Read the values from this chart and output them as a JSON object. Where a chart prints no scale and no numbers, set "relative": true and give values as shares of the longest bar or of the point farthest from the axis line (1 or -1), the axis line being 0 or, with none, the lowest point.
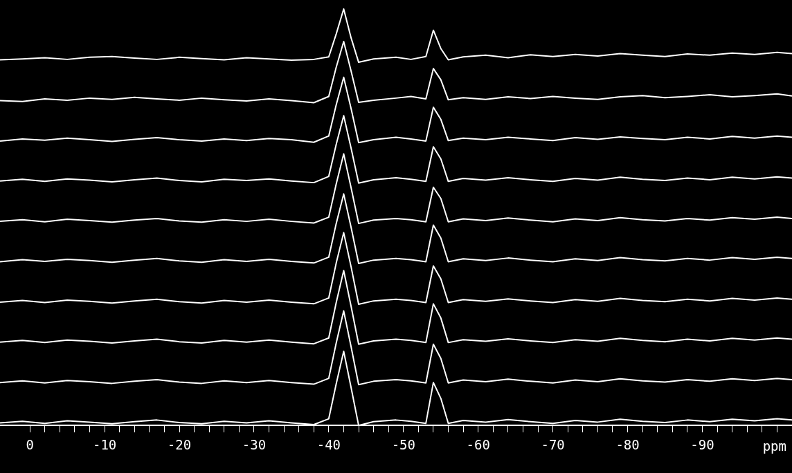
{
  "chart_data": {
    "type": "line",
    "relative": true,
    "xlabel": "ppm",
    "color": "#ffffff",
    "xlim": [
      4,
      -102
    ],
    "xticks": [
      0,
      {
        "value": -2,
        "label": null
      },
      {
        "value": -4,
        "label": null
      },
      {
        "value": -6,
        "label": null
      },
      {
        "value": -8,
        "label": null
      },
      -10,
      {
        "value": -12,
        "label": null
      },
      {
        "value": -14,
        "label": null
      },
      {
        "value": -16,
        "label": null
      },
      {
        "value": -18,
        "label": null
      },
      -20,
      {
        "value": -22,
        "label": null
      },
      {
        "value": -24,
        "label": null
      },
      {
        "value": -26,
        "label": null
      },
      {
        "value": -28,
        "label": null
      },
      -30,
      {
        "value": -32,
        "label": null
      },
      {
        "value": -34,
        "label": null
      },
      {
        "value": -36,
        "label": null
      },
      {
        "value": -38,
        "label": null
      },
      -40,
      {
        "value": -42,
        "label": null
      },
      {
        "value": -44,
        "label": null
      },
      {
        "value": -46,
        "label": null
      },
      {
        "value": -48,
        "label": null
      },
      -50,
      {
        "value": -52,
        "label": null
      },
      {
        "value": -54,
        "label": null
      },
      {
        "value": -56,
        "label": null
      },
      {
        "value": -58,
        "label": null
      },
      -60,
      {
        "value": -62,
        "label": null
      },
      {
        "value": -64,
        "label": null
      },
      {
        "value": -66,
        "label": null
      },
      {
        "value": -68,
        "label": null
      },
      -70,
      {
        "value": -72,
        "label": null
      },
      {
        "value": -74,
        "label": null
      },
      {
        "value": -76,
        "label": null
      },
      {
        "value": -78,
        "label": null
      },
      -80,
      {
        "value": -82,
        "label": null
      },
      {
        "value": -84,
        "label": null
      },
      {
        "value": -86,
        "label": null
      },
      {
        "value": -88,
        "label": null
      },
      -90,
      {
        "value": -92,
        "label": null
      },
      {
        "value": -94,
        "label": null
      },
      {
        "value": -96,
        "label": null
      },
      {
        "value": -98,
        "label": null
      },
      {
        "value": -100,
        "label": null
      }
    ],
    "x": [
      4,
      1,
      -2,
      -5,
      -8,
      -11,
      -14,
      -17,
      -20,
      -23,
      -26,
      -29,
      -32,
      -35,
      -38,
      -40,
      -41,
      -42,
      -43,
      -44,
      -46,
      -49,
      -51,
      -53,
      -54,
      -55,
      -56,
      -58,
      -61,
      -64,
      -67,
      -70,
      -73,
      -76,
      -79,
      -82,
      -85,
      -88,
      -91,
      -94,
      -97,
      -100,
      -102
    ],
    "series": [
      {
        "color": "#ffffff",
        "values": [
          0.878,
          0.88,
          0.883,
          0.879,
          0.884,
          0.886,
          0.882,
          0.879,
          0.884,
          0.881,
          0.878,
          0.883,
          0.88,
          0.877,
          0.879,
          0.885,
          0.94,
          1.0,
          0.93,
          0.872,
          0.88,
          0.884,
          0.879,
          0.886,
          0.949,
          0.905,
          0.878,
          0.885,
          0.889,
          0.883,
          0.89,
          0.886,
          0.891,
          0.887,
          0.893,
          0.889,
          0.886,
          0.892,
          0.889,
          0.894,
          0.891,
          0.896,
          0.893
        ]
      },
      {
        "color": "#ffffff",
        "values": [
          0.78,
          0.778,
          0.784,
          0.781,
          0.786,
          0.783,
          0.788,
          0.784,
          0.781,
          0.786,
          0.782,
          0.779,
          0.784,
          0.78,
          0.775,
          0.79,
          0.86,
          0.922,
          0.85,
          0.776,
          0.781,
          0.786,
          0.79,
          0.784,
          0.857,
          0.83,
          0.782,
          0.787,
          0.783,
          0.789,
          0.785,
          0.79,
          0.786,
          0.783,
          0.789,
          0.792,
          0.787,
          0.79,
          0.794,
          0.789,
          0.792,
          0.796,
          0.791
        ]
      },
      {
        "color": "#ffffff",
        "values": [
          0.683,
          0.688,
          0.685,
          0.69,
          0.686,
          0.682,
          0.687,
          0.691,
          0.686,
          0.683,
          0.688,
          0.684,
          0.689,
          0.686,
          0.68,
          0.695,
          0.77,
          0.836,
          0.76,
          0.679,
          0.686,
          0.692,
          0.688,
          0.683,
          0.764,
          0.735,
          0.684,
          0.69,
          0.686,
          0.692,
          0.688,
          0.684,
          0.691,
          0.687,
          0.693,
          0.689,
          0.686,
          0.692,
          0.688,
          0.694,
          0.69,
          0.695,
          0.692
        ]
      },
      {
        "color": "#ffffff",
        "values": [
          0.587,
          0.591,
          0.586,
          0.592,
          0.589,
          0.585,
          0.59,
          0.594,
          0.588,
          0.585,
          0.591,
          0.588,
          0.592,
          0.587,
          0.583,
          0.598,
          0.675,
          0.744,
          0.665,
          0.582,
          0.59,
          0.595,
          0.591,
          0.586,
          0.669,
          0.64,
          0.586,
          0.593,
          0.589,
          0.595,
          0.59,
          0.586,
          0.593,
          0.589,
          0.596,
          0.591,
          0.588,
          0.594,
          0.59,
          0.596,
          0.592,
          0.597,
          0.594
        ]
      },
      {
        "color": "#ffffff",
        "values": [
          0.49,
          0.494,
          0.489,
          0.495,
          0.492,
          0.488,
          0.493,
          0.497,
          0.491,
          0.488,
          0.494,
          0.49,
          0.495,
          0.49,
          0.486,
          0.5,
          0.58,
          0.652,
          0.57,
          0.485,
          0.493,
          0.497,
          0.494,
          0.489,
          0.572,
          0.545,
          0.489,
          0.496,
          0.492,
          0.498,
          0.493,
          0.489,
          0.496,
          0.492,
          0.499,
          0.494,
          0.491,
          0.497,
          0.493,
          0.499,
          0.495,
          0.5,
          0.497
        ]
      },
      {
        "color": "#ffffff",
        "values": [
          0.393,
          0.398,
          0.394,
          0.399,
          0.396,
          0.392,
          0.397,
          0.401,
          0.395,
          0.392,
          0.398,
          0.394,
          0.399,
          0.394,
          0.39,
          0.404,
          0.485,
          0.556,
          0.475,
          0.389,
          0.397,
          0.401,
          0.398,
          0.393,
          0.481,
          0.45,
          0.393,
          0.4,
          0.396,
          0.402,
          0.397,
          0.393,
          0.4,
          0.396,
          0.403,
          0.398,
          0.395,
          0.401,
          0.397,
          0.403,
          0.399,
          0.404,
          0.401
        ]
      },
      {
        "color": "#ffffff",
        "values": [
          0.296,
          0.3,
          0.295,
          0.301,
          0.298,
          0.294,
          0.299,
          0.303,
          0.297,
          0.294,
          0.3,
          0.296,
          0.301,
          0.296,
          0.292,
          0.306,
          0.39,
          0.463,
          0.38,
          0.291,
          0.299,
          0.303,
          0.3,
          0.295,
          0.383,
          0.352,
          0.295,
          0.302,
          0.298,
          0.304,
          0.299,
          0.295,
          0.302,
          0.298,
          0.305,
          0.3,
          0.297,
          0.303,
          0.299,
          0.305,
          0.301,
          0.306,
          0.303
        ]
      },
      {
        "color": "#ffffff",
        "values": [
          0.2,
          0.204,
          0.199,
          0.205,
          0.202,
          0.198,
          0.203,
          0.207,
          0.201,
          0.198,
          0.204,
          0.2,
          0.205,
          0.2,
          0.196,
          0.21,
          0.295,
          0.372,
          0.285,
          0.195,
          0.203,
          0.207,
          0.204,
          0.199,
          0.292,
          0.258,
          0.199,
          0.206,
          0.202,
          0.208,
          0.203,
          0.199,
          0.206,
          0.202,
          0.209,
          0.204,
          0.201,
          0.207,
          0.203,
          0.209,
          0.205,
          0.21,
          0.207
        ]
      },
      {
        "color": "#ffffff",
        "values": [
          0.103,
          0.107,
          0.102,
          0.108,
          0.105,
          0.101,
          0.106,
          0.11,
          0.104,
          0.101,
          0.107,
          0.103,
          0.108,
          0.103,
          0.099,
          0.113,
          0.198,
          0.275,
          0.188,
          0.098,
          0.106,
          0.11,
          0.107,
          0.102,
          0.195,
          0.161,
          0.102,
          0.109,
          0.105,
          0.111,
          0.106,
          0.102,
          0.109,
          0.105,
          0.112,
          0.107,
          0.104,
          0.11,
          0.106,
          0.112,
          0.108,
          0.113,
          0.11
        ]
      },
      {
        "color": "#ffffff",
        "values": [
          0.006,
          0.01,
          0.005,
          0.011,
          0.008,
          0.004,
          0.009,
          0.013,
          0.007,
          0.004,
          0.01,
          0.006,
          0.011,
          0.006,
          0.002,
          0.016,
          0.1,
          0.178,
          0.09,
          0,
          0.009,
          0.013,
          0.01,
          0.005,
          0.103,
          0.065,
          0.005,
          0.012,
          0.008,
          0.014,
          0.009,
          0.005,
          0.012,
          0.008,
          0.015,
          0.01,
          0.007,
          0.013,
          0.009,
          0.015,
          0.011,
          0.016,
          0.013
        ]
      }
    ]
  }
}
